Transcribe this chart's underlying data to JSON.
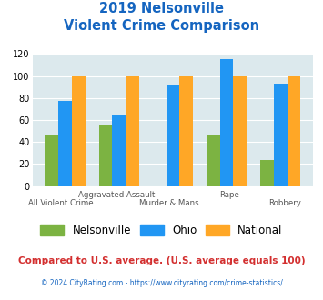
{
  "title_line1": "2019 Nelsonville",
  "title_line2": "Violent Crime Comparison",
  "categories": [
    "All Violent Crime",
    "Aggravated Assault",
    "Murder & Mans...",
    "Rape",
    "Robbery"
  ],
  "nelsonville": [
    46,
    55,
    0,
    46,
    24
  ],
  "ohio": [
    77,
    65,
    92,
    115,
    93
  ],
  "national": [
    100,
    100,
    100,
    100,
    100
  ],
  "color_nelsonville": "#7cb342",
  "color_ohio": "#2196f3",
  "color_national": "#ffa726",
  "ylim": [
    0,
    120
  ],
  "yticks": [
    0,
    20,
    40,
    60,
    80,
    100,
    120
  ],
  "title_color": "#1565c0",
  "footnote1": "Compared to U.S. average. (U.S. average equals 100)",
  "footnote2": "© 2024 CityRating.com - https://www.cityrating.com/crime-statistics/",
  "footnote1_color": "#d32f2f",
  "footnote2_color": "#1565c0",
  "bg_color": "#dce9ed",
  "bar_width": 0.25
}
